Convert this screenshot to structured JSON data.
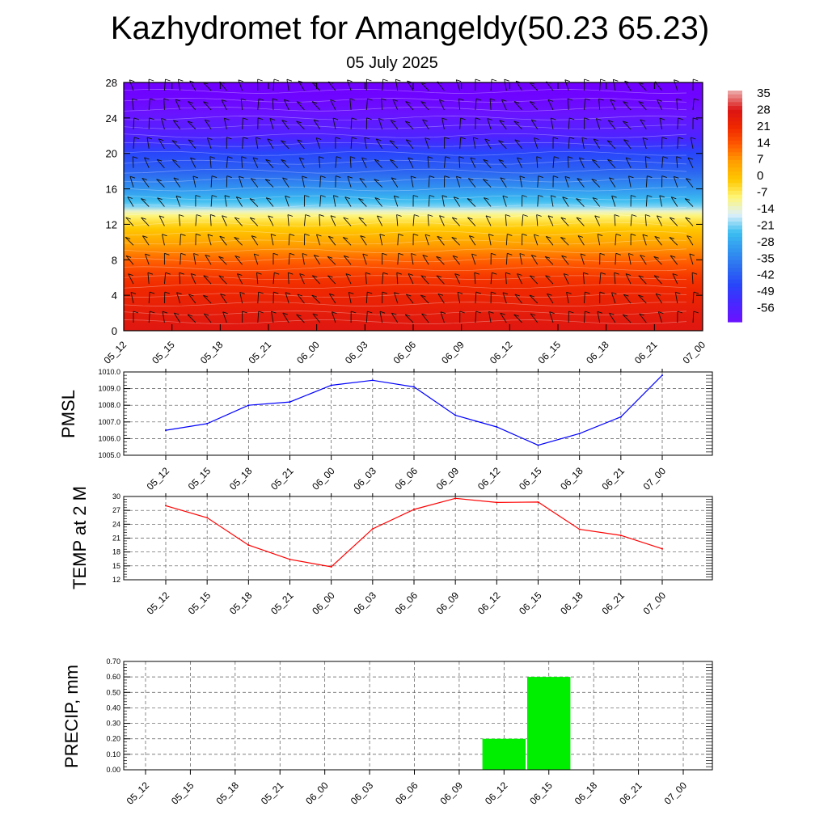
{
  "title": "Kazhydromet for Amangeldy(50.23 65.23)",
  "subtitle": "05 July 2025",
  "colors": {
    "pmsl_line": "#0000ff",
    "temp_line": "#ff0000",
    "precip_bar": "#00ee00"
  },
  "chart_data": [
    {
      "type": "heatmap",
      "name": "vertical-cross-section",
      "x_categories": [
        "05_12",
        "05_15",
        "05_18",
        "05_21",
        "06_00",
        "06_03",
        "06_06",
        "06_09",
        "06_12",
        "06_15",
        "06_18",
        "06_21",
        "07_00"
      ],
      "ylim": [
        0,
        28
      ],
      "yticks": [
        0,
        4,
        8,
        12,
        16,
        20,
        24,
        28
      ],
      "colorbar": {
        "labels": [
          "35",
          "28",
          "21",
          "14",
          "7",
          "0",
          "-7",
          "-14",
          "-21",
          "-28",
          "-35",
          "-42",
          "-49",
          "-56"
        ],
        "values": [
          35,
          28,
          21,
          14,
          7,
          0,
          -7,
          -14,
          -21,
          -28,
          -35,
          -42,
          -49,
          -56
        ]
      },
      "temperature_profile": {
        "heights": [
          0,
          2,
          4,
          6,
          8,
          10,
          12,
          13.3,
          14,
          16,
          18,
          20,
          22,
          24,
          26,
          28
        ],
        "values": [
          27,
          25,
          22,
          19,
          13,
          6,
          -2,
          -9,
          -18,
          -28,
          -37,
          -42,
          -51,
          -55,
          -60,
          -62
        ]
      },
      "wind_barbs": true
    },
    {
      "type": "line",
      "ylabel": "PMSL",
      "categories": [
        "05_12",
        "05_15",
        "05_18",
        "05_21",
        "06_00",
        "06_03",
        "06_06",
        "06_09",
        "06_12",
        "06_15",
        "06_18",
        "06_21",
        "07_00"
      ],
      "values": [
        1006.5,
        1006.9,
        1008.0,
        1008.2,
        1009.2,
        1009.5,
        1009.1,
        1007.4,
        1006.7,
        1005.6,
        1006.3,
        1007.3,
        1009.8
      ],
      "ylim": [
        1005.0,
        1010.0
      ],
      "yticks": [
        "1005.0",
        "1006.0",
        "1007.0",
        "1008.0",
        "1009.0",
        "1010.0"
      ]
    },
    {
      "type": "line",
      "ylabel": "TEMP at 2 M",
      "categories": [
        "05_12",
        "05_15",
        "05_18",
        "05_21",
        "06_00",
        "06_03",
        "06_06",
        "06_09",
        "06_12",
        "06_15",
        "06_18",
        "06_21",
        "07_00"
      ],
      "values": [
        28.0,
        25.4,
        19.5,
        16.4,
        14.8,
        23.0,
        27.2,
        29.6,
        28.7,
        28.8,
        22.9,
        21.6,
        18.7
      ],
      "ylim": [
        12,
        30
      ],
      "yticks": [
        "12",
        "15",
        "18",
        "21",
        "24",
        "27",
        "30"
      ]
    },
    {
      "type": "bar",
      "ylabel": "PRECIP, mm",
      "categories": [
        "05_12",
        "05_15",
        "05_18",
        "05_21",
        "06_00",
        "06_03",
        "06_06",
        "06_09",
        "06_12",
        "06_15",
        "06_18",
        "06_21",
        "07_00"
      ],
      "values": [
        0,
        0,
        0,
        0,
        0,
        0,
        0,
        0,
        0.2,
        0.6,
        0,
        0,
        0
      ],
      "ylim": [
        0,
        0.7
      ],
      "yticks": [
        "0.00",
        "0.10",
        "0.20",
        "0.30",
        "0.40",
        "0.50",
        "0.60",
        "0.70"
      ]
    }
  ]
}
